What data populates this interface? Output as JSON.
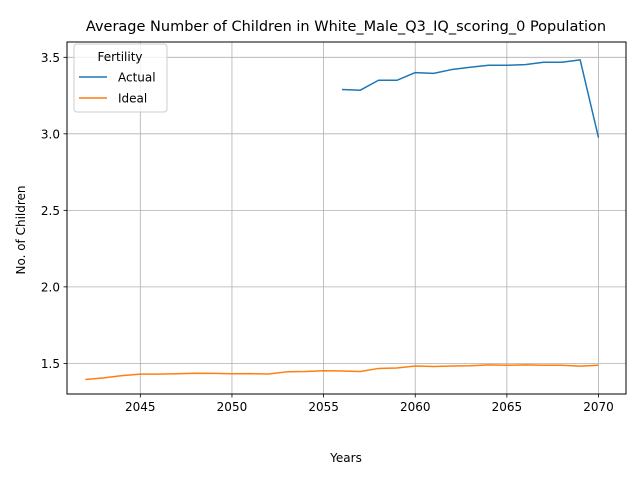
{
  "chart_data": {
    "type": "line",
    "title": "Average Number of Children in White_Male_Q3_IQ_scoring_0 Population",
    "xlabel": "Years",
    "ylabel": "No. of Children",
    "xlim": [
      2041,
      2071.5
    ],
    "ylim": [
      1.3,
      3.6
    ],
    "xticks": [
      2045,
      2050,
      2055,
      2060,
      2065,
      2070
    ],
    "yticks": [
      1.5,
      2.0,
      2.5,
      3.0,
      3.5
    ],
    "ytick_labels": [
      "1.5",
      "2.0",
      "2.5",
      "3.0",
      "3.5"
    ],
    "grid": true,
    "legend": {
      "title": "Fertility",
      "placement": "upper-left"
    },
    "series": [
      {
        "name": "Actual",
        "color": "#1f77b4",
        "x": [
          2056,
          2057,
          2058,
          2059,
          2060,
          2061,
          2062,
          2063,
          2064,
          2065,
          2066,
          2067,
          2068,
          2069,
          2070
        ],
        "values": [
          3.29,
          3.285,
          3.35,
          3.35,
          3.4,
          3.395,
          3.42,
          3.435,
          3.448,
          3.448,
          3.452,
          3.468,
          3.468,
          3.483,
          2.975
        ]
      },
      {
        "name": "Ideal",
        "color": "#ff7f0e",
        "x": [
          2042,
          2043,
          2044,
          2045,
          2046,
          2047,
          2048,
          2049,
          2050,
          2051,
          2052,
          2053,
          2054,
          2055,
          2056,
          2057,
          2058,
          2059,
          2060,
          2061,
          2062,
          2063,
          2064,
          2065,
          2066,
          2067,
          2068,
          2069,
          2070
        ],
        "values": [
          1.395,
          1.405,
          1.42,
          1.43,
          1.43,
          1.432,
          1.436,
          1.435,
          1.432,
          1.433,
          1.431,
          1.445,
          1.447,
          1.452,
          1.45,
          1.447,
          1.467,
          1.47,
          1.483,
          1.48,
          1.483,
          1.485,
          1.49,
          1.488,
          1.49,
          1.488,
          1.488,
          1.482,
          1.488
        ]
      }
    ]
  }
}
